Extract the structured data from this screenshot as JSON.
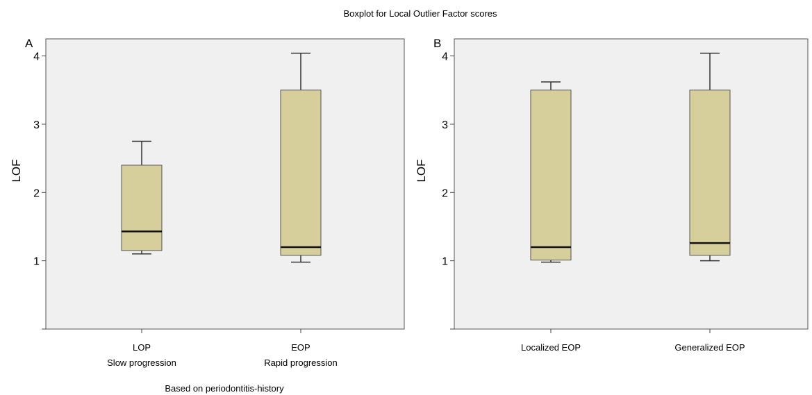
{
  "figure": {
    "title": "Boxplot for Local Outlier Factor scores"
  },
  "chart_data": [
    {
      "type": "box",
      "panel_label": "A",
      "ylabel": "LOF",
      "xlabel": "Based on periodontitis-history",
      "ylim": [
        0,
        4.25
      ],
      "yticks": [
        1,
        2,
        3,
        4
      ],
      "grid": false,
      "box_color": "#d6cf9b",
      "plot_background": "#f0f0f0",
      "categories": [
        {
          "line1": "LOP",
          "line2": "Slow progression",
          "whisker_low": 1.1,
          "q1": 1.15,
          "median": 1.43,
          "q3": 2.4,
          "whisker_high": 2.75
        },
        {
          "line1": "EOP",
          "line2": "Rapid progression",
          "whisker_low": 0.98,
          "q1": 1.08,
          "median": 1.2,
          "q3": 3.5,
          "whisker_high": 4.04
        }
      ]
    },
    {
      "type": "box",
      "panel_label": "B",
      "ylabel": "LOF",
      "xlabel": "",
      "ylim": [
        0,
        4.25
      ],
      "yticks": [
        1,
        2,
        3,
        4
      ],
      "grid": false,
      "box_color": "#d6cf9b",
      "plot_background": "#f0f0f0",
      "categories": [
        {
          "line1": "Localized  EOP",
          "line2": "",
          "whisker_low": 0.98,
          "q1": 1.01,
          "median": 1.2,
          "q3": 3.5,
          "whisker_high": 3.62
        },
        {
          "line1": "Generalized  EOP",
          "line2": "",
          "whisker_low": 1.0,
          "q1": 1.08,
          "median": 1.26,
          "q3": 3.5,
          "whisker_high": 4.04
        }
      ]
    }
  ]
}
